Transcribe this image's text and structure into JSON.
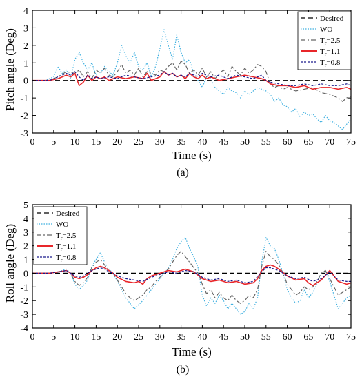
{
  "chart_data": [
    {
      "type": "line",
      "panel_label": "(a)",
      "xlabel": "Time (s)",
      "ylabel": "Pitch angle (Deg)",
      "xlim": [
        0,
        75
      ],
      "ylim": [
        -3,
        4
      ],
      "x_ticks": [
        0,
        5,
        10,
        15,
        20,
        25,
        30,
        35,
        40,
        45,
        50,
        55,
        60,
        65,
        70,
        75
      ],
      "y_ticks": [
        -3,
        -2,
        -1,
        0,
        1,
        2,
        3,
        4
      ],
      "legend_position": "top-right",
      "series": [
        {
          "name": "Desired",
          "color": "#000000",
          "dash": "dashed",
          "x": [
            0,
            75
          ],
          "y": [
            0,
            0
          ]
        },
        {
          "name": "WO",
          "color": "#3fb0e0",
          "dash": "dotted",
          "x": [
            0,
            3,
            5,
            6,
            7,
            8,
            9,
            10,
            11,
            12,
            13,
            14,
            15,
            16,
            17,
            18,
            19,
            20,
            21,
            22,
            23,
            24,
            25,
            26,
            27,
            28,
            29,
            30,
            31,
            32,
            33,
            34,
            35,
            36,
            37,
            38,
            39,
            40,
            41,
            42,
            43,
            44,
            45,
            46,
            47,
            48,
            49,
            50,
            51,
            52,
            53,
            54,
            55,
            56,
            57,
            58,
            59,
            60,
            61,
            62,
            63,
            64,
            65,
            66,
            67,
            68,
            69,
            70,
            71,
            72,
            73,
            74,
            75
          ],
          "y": [
            0,
            0,
            0.2,
            0.8,
            0.4,
            0.6,
            0.1,
            1.2,
            1.6,
            1.0,
            0.6,
            1.0,
            0.3,
            0.4,
            0.8,
            0.5,
            0.3,
            1.0,
            2.0,
            1.4,
            1.0,
            1.6,
            0.8,
            0.6,
            1.0,
            0.2,
            0.8,
            1.8,
            2.9,
            2.0,
            1.2,
            2.6,
            1.6,
            1.0,
            1.2,
            0.4,
            0.0,
            -0.4,
            0.2,
            0.1,
            -0.4,
            -0.6,
            -0.8,
            -0.4,
            -0.6,
            -0.7,
            -1.0,
            -0.6,
            -0.8,
            -0.6,
            -0.4,
            -0.5,
            -0.6,
            -0.8,
            -1.2,
            -1.0,
            -1.4,
            -1.5,
            -1.8,
            -1.6,
            -2.1,
            -1.8,
            -2.0,
            -1.9,
            -2.2,
            -2.4,
            -2.0,
            -2.3,
            -2.4,
            -2.6,
            -2.8,
            -2.5,
            -2.2
          ]
        },
        {
          "name": "T_r=2.5",
          "color": "#666666",
          "dash": "dashdot",
          "x": [
            0,
            4,
            6,
            8,
            10,
            11,
            12,
            13,
            14,
            15,
            16,
            17,
            18,
            19,
            20,
            21,
            22,
            23,
            24,
            25,
            26,
            27,
            28,
            29,
            30,
            31,
            32,
            33,
            34,
            35,
            36,
            37,
            38,
            39,
            40,
            41,
            42,
            43,
            44,
            45,
            46,
            47,
            48,
            49,
            50,
            51,
            52,
            53,
            54,
            55,
            56,
            57,
            58,
            59,
            60,
            62,
            64,
            66,
            68,
            70,
            71,
            72,
            73,
            74,
            75
          ],
          "y": [
            0,
            0,
            0.2,
            0.5,
            0.4,
            0.6,
            0.2,
            0.5,
            0.1,
            0.6,
            0.4,
            0.7,
            0.3,
            0.2,
            0.5,
            0.9,
            0.4,
            0.6,
            0.3,
            0.7,
            0.2,
            0.5,
            0.4,
            0.3,
            0.6,
            0.5,
            0.8,
            1.0,
            0.6,
            1.1,
            0.9,
            0.4,
            0.6,
            0.3,
            0.7,
            0.2,
            0.5,
            0.1,
            0.4,
            0.6,
            0.2,
            0.8,
            0.5,
            0.3,
            0.7,
            0.4,
            0.6,
            0.9,
            0.8,
            0.5,
            -0.2,
            -0.4,
            -0.3,
            -0.5,
            -0.4,
            -0.6,
            -0.5,
            -0.4,
            -0.7,
            -0.8,
            -0.9,
            -1.0,
            -1.2,
            -1.0,
            -0.9
          ]
        },
        {
          "name": "T_r=1.1",
          "color": "#e8262a",
          "dash": "solid",
          "x": [
            0,
            4,
            6,
            8,
            9,
            10,
            11,
            12,
            13,
            14,
            15,
            16,
            17,
            18,
            19,
            20,
            22,
            24,
            26,
            27,
            28,
            30,
            31,
            32,
            33,
            34,
            35,
            36,
            37,
            38,
            39,
            40,
            41,
            42,
            44,
            46,
            48,
            50,
            52,
            54,
            55,
            56,
            58,
            60,
            62,
            64,
            66,
            68,
            70,
            72,
            74,
            75
          ],
          "y": [
            0,
            0,
            0.1,
            0.3,
            0.2,
            0.4,
            -0.3,
            -0.1,
            0.3,
            0.0,
            0.2,
            0.1,
            0.2,
            0.0,
            0.1,
            0.2,
            0.1,
            0.2,
            0.1,
            0.4,
            0.0,
            0.2,
            0.5,
            0.3,
            0.4,
            0.2,
            0.3,
            0.1,
            0.4,
            0.2,
            0.1,
            0.3,
            0.1,
            0.2,
            0.0,
            0.1,
            0.2,
            0.3,
            0.2,
            0.1,
            0.0,
            -0.2,
            -0.3,
            -0.3,
            -0.4,
            -0.3,
            -0.5,
            -0.4,
            -0.4,
            -0.5,
            -0.4,
            -0.5
          ]
        },
        {
          "name": "T_r=0.8",
          "color": "#1a1a8c",
          "dash": "shortdash",
          "x": [
            0,
            4,
            6,
            8,
            9,
            10,
            11,
            12,
            13,
            14,
            15,
            16,
            18,
            20,
            22,
            24,
            26,
            28,
            30,
            31,
            32,
            33,
            34,
            35,
            36,
            37,
            38,
            39,
            40,
            42,
            44,
            46,
            48,
            50,
            52,
            54,
            55,
            56,
            58,
            60,
            62,
            64,
            66,
            68,
            70,
            72,
            74,
            75
          ],
          "y": [
            0,
            0,
            0.2,
            0.4,
            0.3,
            0.5,
            0.2,
            0.0,
            0.3,
            0.1,
            0.2,
            0.1,
            0.2,
            0.1,
            0.3,
            0.2,
            0.1,
            0.2,
            0.3,
            0.5,
            0.3,
            0.4,
            0.2,
            0.3,
            0.2,
            0.4,
            0.3,
            0.2,
            0.4,
            0.2,
            0.3,
            0.1,
            0.3,
            0.2,
            0.1,
            0.3,
            0.0,
            -0.1,
            -0.2,
            -0.3,
            -0.3,
            -0.2,
            -0.3,
            -0.2,
            -0.3,
            -0.3,
            -0.2,
            -0.3
          ]
        }
      ]
    },
    {
      "type": "line",
      "panel_label": "(b)",
      "xlabel": "Time (s)",
      "ylabel": "Roll angle (Deg)",
      "xlim": [
        0,
        75
      ],
      "ylim": [
        -4,
        5
      ],
      "x_ticks": [
        0,
        5,
        10,
        15,
        20,
        25,
        30,
        35,
        40,
        45,
        50,
        55,
        60,
        65,
        70,
        75
      ],
      "y_ticks": [
        -4,
        -3,
        -2,
        -1,
        0,
        1,
        2,
        3,
        4,
        5
      ],
      "legend_position": "top-left",
      "series": [
        {
          "name": "Desired",
          "color": "#000000",
          "dash": "dashed",
          "x": [
            0,
            75
          ],
          "y": [
            0,
            0
          ]
        },
        {
          "name": "WO",
          "color": "#3fb0e0",
          "dash": "dotted",
          "x": [
            0,
            4,
            6,
            8,
            9,
            10,
            11,
            12,
            13,
            14,
            15,
            16,
            17,
            18,
            19,
            20,
            21,
            22,
            23,
            24,
            25,
            26,
            27,
            28,
            29,
            30,
            31,
            32,
            33,
            34,
            35,
            36,
            37,
            38,
            39,
            40,
            41,
            42,
            43,
            44,
            45,
            46,
            47,
            48,
            49,
            50,
            51,
            52,
            53,
            54,
            55,
            56,
            57,
            58,
            59,
            60,
            61,
            62,
            63,
            64,
            65,
            66,
            67,
            68,
            69,
            70,
            71,
            72,
            73,
            74,
            75
          ],
          "y": [
            0,
            0,
            0.1,
            0.3,
            0.0,
            -0.8,
            -1.2,
            -0.9,
            -0.5,
            0.5,
            1.0,
            1.5,
            0.8,
            0.3,
            0.0,
            -0.6,
            -1.2,
            -1.8,
            -2.2,
            -2.6,
            -2.3,
            -2.0,
            -1.6,
            -1.2,
            -0.8,
            -0.4,
            0.0,
            0.4,
            1.0,
            1.8,
            2.3,
            2.6,
            1.8,
            1.2,
            0.4,
            -1.6,
            -2.4,
            -1.8,
            -2.2,
            -1.6,
            -2.0,
            -2.6,
            -2.2,
            -2.6,
            -3.0,
            -2.8,
            -2.2,
            -2.6,
            -1.8,
            0.8,
            2.6,
            2.0,
            1.8,
            1.0,
            0.0,
            -1.2,
            -1.8,
            -2.2,
            -2.0,
            -1.2,
            -1.8,
            -1.4,
            -0.8,
            0.0,
            0.2,
            -0.6,
            -1.6,
            -2.6,
            -2.2,
            -1.8,
            -1.6
          ]
        },
        {
          "name": "T_r=2.5",
          "color": "#666666",
          "dash": "dashdot",
          "x": [
            0,
            4,
            6,
            8,
            9,
            10,
            11,
            12,
            13,
            14,
            15,
            16,
            17,
            18,
            19,
            20,
            21,
            22,
            23,
            24,
            25,
            26,
            27,
            28,
            29,
            30,
            31,
            32,
            33,
            34,
            35,
            36,
            37,
            38,
            39,
            40,
            41,
            42,
            43,
            44,
            45,
            46,
            47,
            48,
            49,
            50,
            51,
            52,
            53,
            54,
            55,
            56,
            57,
            58,
            59,
            60,
            61,
            62,
            63,
            64,
            65,
            66,
            67,
            68,
            69,
            70,
            71,
            72,
            73,
            74,
            75
          ],
          "y": [
            0,
            0,
            0.1,
            0.2,
            0.0,
            -0.6,
            -0.9,
            -0.7,
            -0.3,
            0.4,
            0.8,
            1.0,
            0.6,
            0.2,
            0.0,
            -0.5,
            -1.0,
            -1.5,
            -1.8,
            -2.0,
            -1.8,
            -1.6,
            -1.2,
            -1.0,
            -0.6,
            -0.3,
            0.0,
            0.3,
            0.8,
            1.3,
            1.6,
            1.2,
            0.8,
            0.4,
            0.0,
            -0.8,
            -1.5,
            -1.2,
            -1.8,
            -1.4,
            -1.8,
            -2.0,
            -1.6,
            -2.0,
            -2.2,
            -2.0,
            -1.6,
            -1.8,
            -1.2,
            0.5,
            1.6,
            1.2,
            1.0,
            0.6,
            0.0,
            -0.8,
            -1.2,
            -1.6,
            -1.4,
            -1.0,
            -1.2,
            -1.0,
            -0.6,
            0.0,
            0.2,
            -0.4,
            -1.0,
            -1.6,
            -1.4,
            -1.2,
            -1.0
          ]
        },
        {
          "name": "T_r=1.1",
          "color": "#e8262a",
          "dash": "solid",
          "x": [
            0,
            4,
            6,
            8,
            9,
            10,
            11,
            12,
            13,
            14,
            15,
            16,
            17,
            18,
            19,
            20,
            22,
            24,
            25,
            26,
            27,
            28,
            30,
            32,
            34,
            36,
            37,
            38,
            40,
            42,
            44,
            46,
            48,
            50,
            52,
            53,
            54,
            55,
            56,
            57,
            58,
            60,
            62,
            64,
            65,
            66,
            68,
            70,
            72,
            74,
            75
          ],
          "y": [
            0,
            0,
            0.1,
            0.2,
            0.0,
            -0.3,
            -0.4,
            -0.3,
            -0.1,
            0.2,
            0.4,
            0.5,
            0.4,
            0.2,
            0.0,
            -0.3,
            -0.6,
            -0.7,
            -0.6,
            -0.8,
            -0.4,
            -0.2,
            0.0,
            0.2,
            0.1,
            0.3,
            0.2,
            0.1,
            -0.4,
            -0.6,
            -0.5,
            -0.7,
            -0.6,
            -0.8,
            -0.7,
            -0.4,
            0.2,
            0.5,
            0.6,
            0.5,
            0.3,
            -0.2,
            -0.5,
            -0.4,
            -0.7,
            -0.9,
            -0.5,
            0.2,
            -0.6,
            -0.8,
            -0.7
          ]
        },
        {
          "name": "T_r=0.8",
          "color": "#1a1a8c",
          "dash": "shortdash",
          "x": [
            0,
            4,
            6,
            8,
            9,
            10,
            11,
            12,
            13,
            14,
            15,
            16,
            17,
            18,
            19,
            20,
            22,
            24,
            26,
            28,
            30,
            32,
            34,
            36,
            38,
            40,
            42,
            44,
            46,
            48,
            50,
            52,
            54,
            55,
            56,
            57,
            58,
            60,
            62,
            64,
            66,
            68,
            70,
            72,
            74,
            75
          ],
          "y": [
            0,
            0,
            0.1,
            0.2,
            0.0,
            -0.2,
            -0.3,
            -0.2,
            0.0,
            0.2,
            0.3,
            0.4,
            0.3,
            0.1,
            0.0,
            -0.2,
            -0.4,
            -0.5,
            -0.6,
            -0.3,
            -0.1,
            0.1,
            0.0,
            0.2,
            0.1,
            -0.3,
            -0.5,
            -0.4,
            -0.6,
            -0.5,
            -0.7,
            -0.6,
            0.1,
            0.4,
            0.4,
            0.3,
            0.2,
            -0.2,
            -0.4,
            -0.3,
            -0.6,
            -0.4,
            0.1,
            -0.5,
            -0.6,
            -0.6
          ]
        }
      ]
    }
  ]
}
